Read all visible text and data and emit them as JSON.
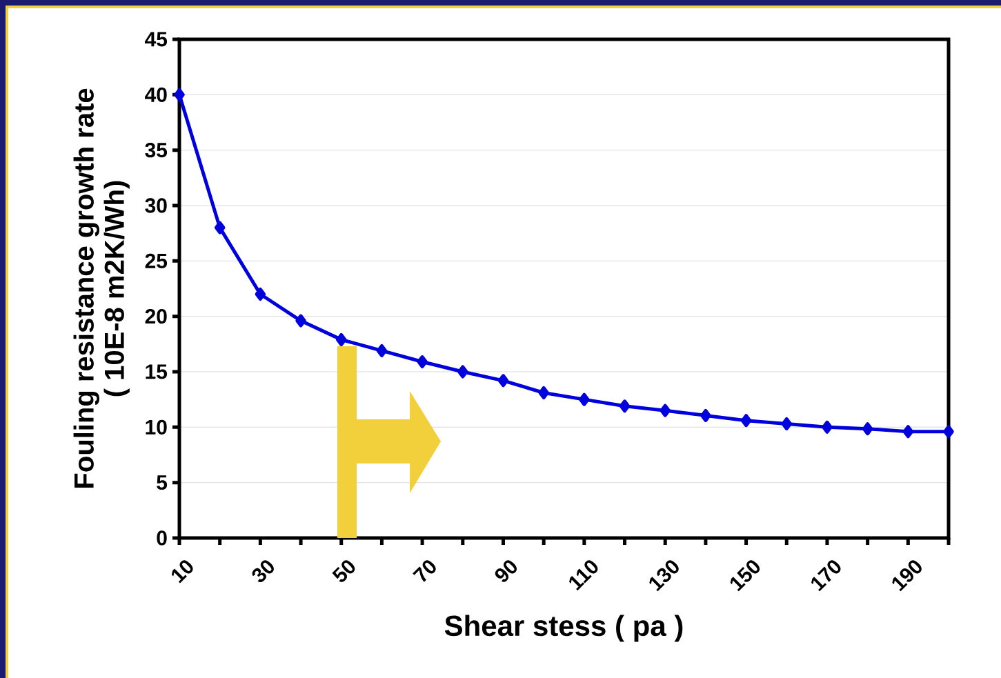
{
  "chart_data": {
    "type": "line",
    "xlabel": "Shear stess ( pa )",
    "ylabel": "Fouling resistance growth rate\n( 10E-8 m2K/Wh)",
    "categories": [
      "10",
      null,
      "30",
      null,
      "50",
      null,
      "70",
      null,
      "90",
      null,
      "110",
      null,
      "130",
      null,
      "150",
      null,
      "170",
      null,
      "190",
      null
    ],
    "values": [
      40,
      28,
      22,
      19.6,
      17.9,
      16.9,
      15.9,
      15.0,
      14.2,
      13.1,
      12.5,
      11.9,
      11.5,
      11.05,
      10.6,
      10.3,
      10.0,
      9.85,
      9.6,
      9.6
    ],
    "color": "#0000dd",
    "ylim": [
      0,
      45
    ],
    "yticks": [
      0,
      5,
      10,
      15,
      20,
      25,
      30,
      35,
      40,
      45
    ],
    "grid": "y",
    "marker": "diamond",
    "line_style": "solid"
  }
}
